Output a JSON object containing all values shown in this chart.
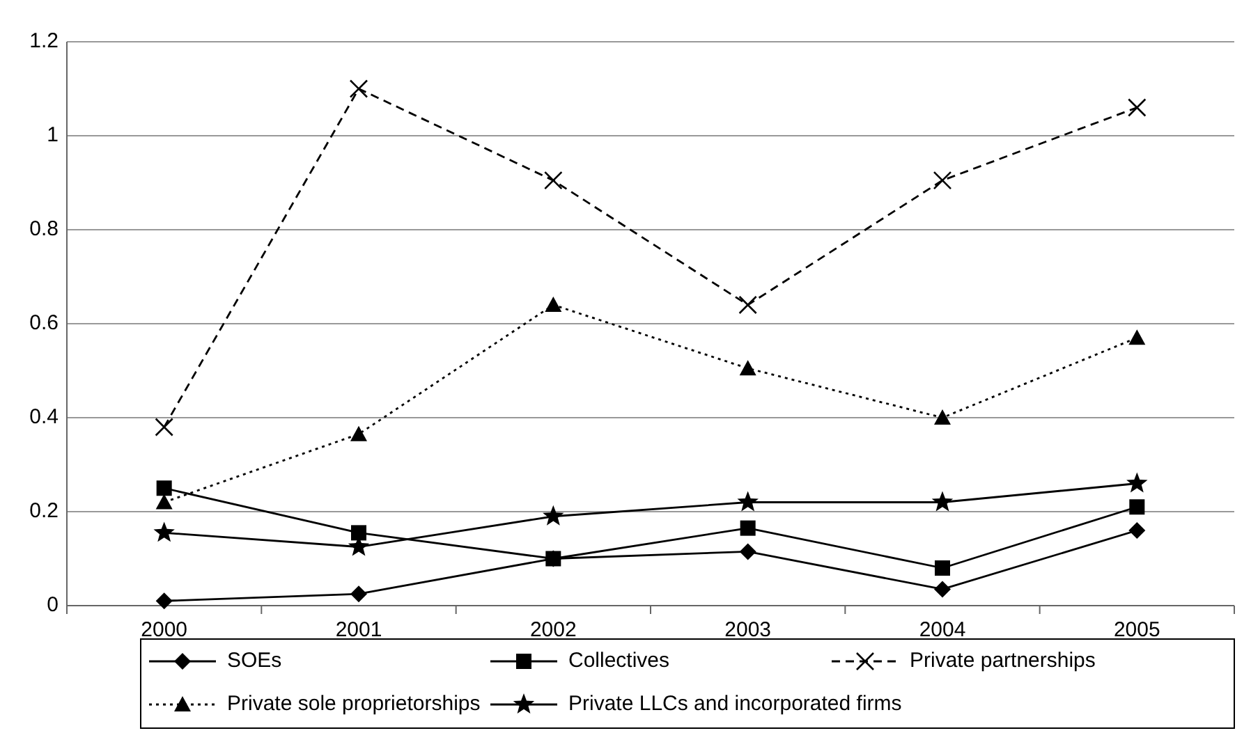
{
  "chart_data": {
    "type": "line",
    "categories": [
      "2000",
      "2001",
      "2002",
      "2003",
      "2004",
      "2005"
    ],
    "ylim": [
      0,
      1.2
    ],
    "yticks": [
      0,
      0.2,
      0.4,
      0.6,
      0.8,
      1,
      1.2
    ],
    "grid": "y",
    "legend": "bottom",
    "series": [
      {
        "name": "SOEs",
        "color": "#000000",
        "marker": "diamond",
        "line_style": "solid",
        "values": [
          0.01,
          0.025,
          0.1,
          0.115,
          0.035,
          0.16
        ]
      },
      {
        "name": "Collectives",
        "color": "#000000",
        "marker": "square",
        "line_style": "solid",
        "values": [
          0.25,
          0.155,
          0.1,
          0.165,
          0.08,
          0.21
        ]
      },
      {
        "name": "Private partnerships",
        "color": "#000000",
        "marker": "cross",
        "line_style": "dashed",
        "values": [
          0.38,
          1.1,
          0.905,
          0.64,
          0.905,
          1.06
        ]
      },
      {
        "name": "Private sole proprietorships",
        "color": "#000000",
        "marker": "triangle",
        "line_style": "dotted",
        "values": [
          0.22,
          0.365,
          0.64,
          0.505,
          0.4,
          0.57
        ]
      },
      {
        "name": "Private LLCs and incorporated firms",
        "color": "#000000",
        "marker": "star",
        "line_style": "solid",
        "values": [
          0.155,
          0.125,
          0.19,
          0.22,
          0.22,
          0.26
        ]
      }
    ]
  }
}
